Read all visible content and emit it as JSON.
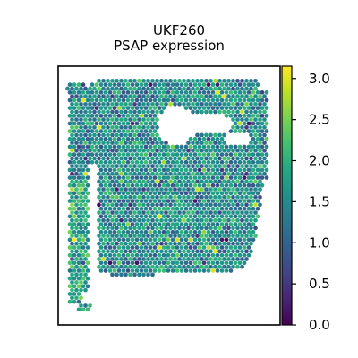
{
  "chart_data": {
    "type": "scatter",
    "subtype": "spatial-hexbin",
    "title_line1": "UKF260",
    "title_line2": "PSAP expression",
    "xlabel": "",
    "ylabel": "",
    "axis_ticks_shown": false,
    "colorbar": {
      "colormap": "viridis",
      "range": [
        0.0,
        3.15
      ],
      "ticks": [
        0.0,
        0.5,
        1.0,
        1.5,
        2.0,
        2.5,
        3.0
      ],
      "tick_labels": [
        "0.0",
        "0.5",
        "1.0",
        "1.5",
        "2.0",
        "2.5",
        "3.0"
      ]
    },
    "value_distribution": {
      "typical_min": 1.0,
      "typical_max": 2.8,
      "dominant_range": [
        1.4,
        2.2
      ]
    }
  }
}
